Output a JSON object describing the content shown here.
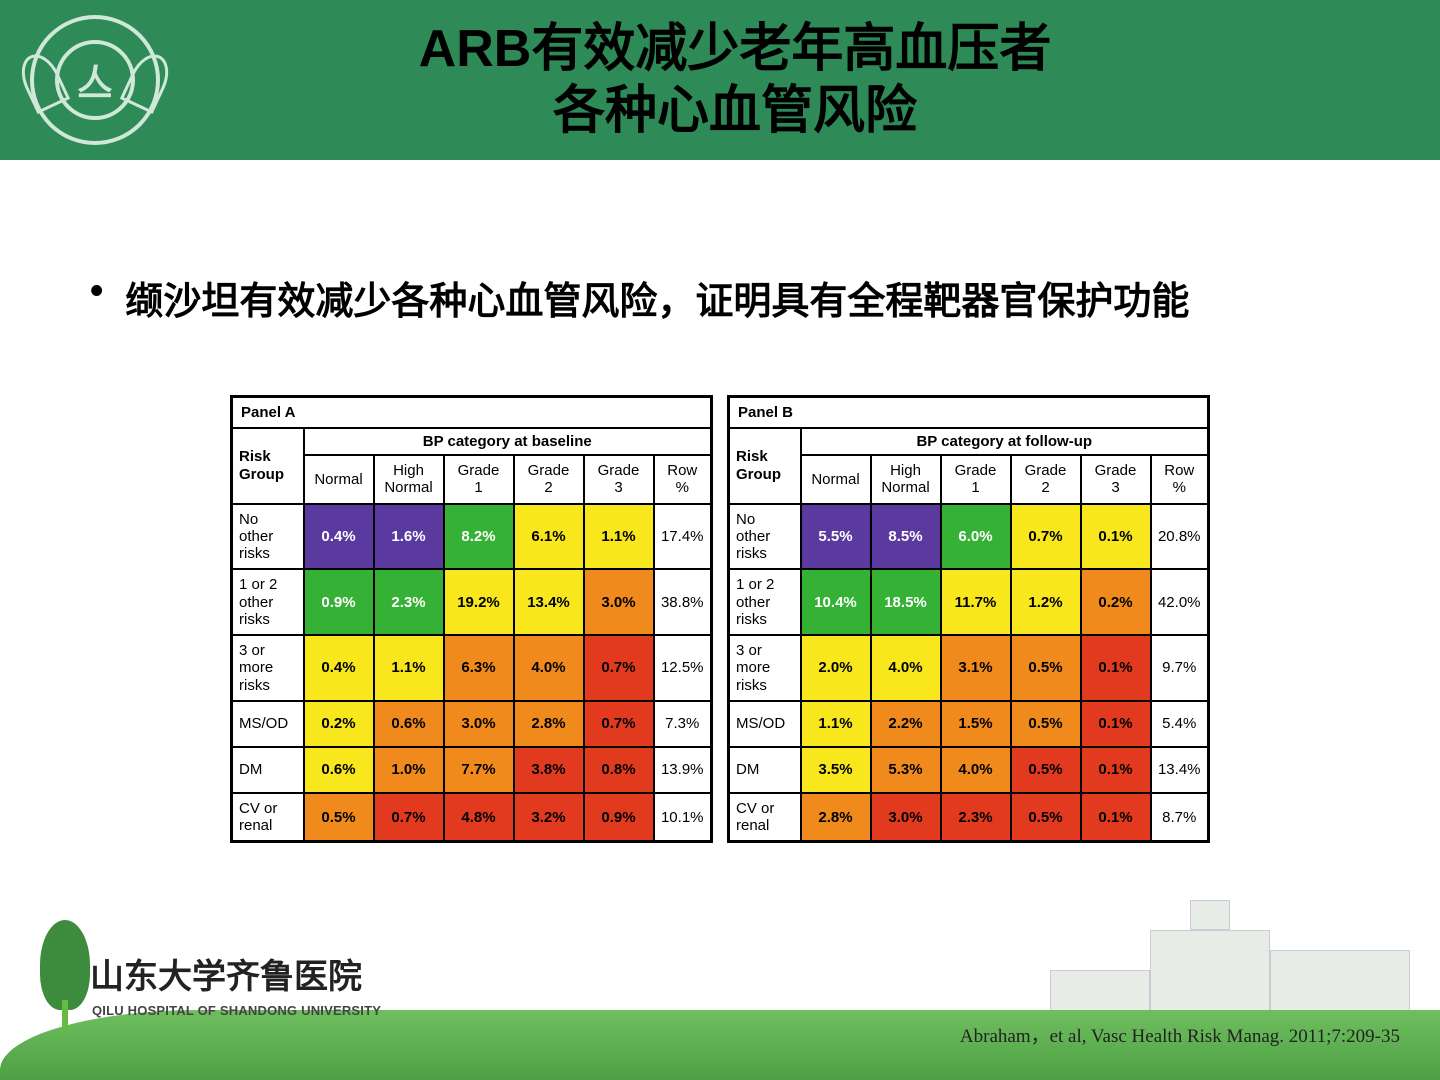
{
  "colors": {
    "header_bg": "#2e8b57",
    "purple": "#5b3aa0",
    "green": "#35b135",
    "yellow": "#f7e71c",
    "orange": "#f08a1d",
    "red": "#e13a1f"
  },
  "title_line1": "ARB有效减少老年高血压者",
  "title_line2": "各种心血管风险",
  "bullet": "缬沙坦有效减少各种心血管风险，证明具有全程靶器官保护功能",
  "panelA": {
    "title": "Panel A",
    "bp_head": "BP category at baseline"
  },
  "panelB": {
    "title": "Panel B",
    "bp_head": "BP category at follow-up"
  },
  "risk_group_label": "Risk Group",
  "cols": [
    "Normal",
    "High Normal",
    "Grade 1",
    "Grade 2",
    "Grade 3",
    "Row %"
  ],
  "rows": [
    {
      "label": "No other risks",
      "A": [
        [
          "0.4%",
          "purple",
          "#fff"
        ],
        [
          "1.6%",
          "purple",
          "#fff"
        ],
        [
          "8.2%",
          "green",
          "#fff"
        ],
        [
          "6.1%",
          "yellow",
          "#000"
        ],
        [
          "1.1%",
          "yellow",
          "#000"
        ]
      ],
      "Arow": "17.4%",
      "B": [
        [
          "5.5%",
          "purple",
          "#fff"
        ],
        [
          "8.5%",
          "purple",
          "#fff"
        ],
        [
          "6.0%",
          "green",
          "#fff"
        ],
        [
          "0.7%",
          "yellow",
          "#000"
        ],
        [
          "0.1%",
          "yellow",
          "#000"
        ]
      ],
      "Brow": "20.8%"
    },
    {
      "label": "1 or 2 other risks",
      "A": [
        [
          "0.9%",
          "green",
          "#fff"
        ],
        [
          "2.3%",
          "green",
          "#fff"
        ],
        [
          "19.2%",
          "yellow",
          "#000"
        ],
        [
          "13.4%",
          "yellow",
          "#000"
        ],
        [
          "3.0%",
          "orange",
          "#000"
        ]
      ],
      "Arow": "38.8%",
      "B": [
        [
          "10.4%",
          "green",
          "#fff"
        ],
        [
          "18.5%",
          "green",
          "#fff"
        ],
        [
          "11.7%",
          "yellow",
          "#000"
        ],
        [
          "1.2%",
          "yellow",
          "#000"
        ],
        [
          "0.2%",
          "orange",
          "#000"
        ]
      ],
      "Brow": "42.0%"
    },
    {
      "label": "3 or more risks",
      "A": [
        [
          "0.4%",
          "yellow",
          "#000"
        ],
        [
          "1.1%",
          "yellow",
          "#000"
        ],
        [
          "6.3%",
          "orange",
          "#000"
        ],
        [
          "4.0%",
          "orange",
          "#000"
        ],
        [
          "0.7%",
          "red",
          "#000"
        ]
      ],
      "Arow": "12.5%",
      "B": [
        [
          "2.0%",
          "yellow",
          "#000"
        ],
        [
          "4.0%",
          "yellow",
          "#000"
        ],
        [
          "3.1%",
          "orange",
          "#000"
        ],
        [
          "0.5%",
          "orange",
          "#000"
        ],
        [
          "0.1%",
          "red",
          "#000"
        ]
      ],
      "Brow": "9.7%"
    },
    {
      "label": "MS/OD",
      "A": [
        [
          "0.2%",
          "yellow",
          "#000"
        ],
        [
          "0.6%",
          "orange",
          "#000"
        ],
        [
          "3.0%",
          "orange",
          "#000"
        ],
        [
          "2.8%",
          "orange",
          "#000"
        ],
        [
          "0.7%",
          "red",
          "#000"
        ]
      ],
      "Arow": "7.3%",
      "B": [
        [
          "1.1%",
          "yellow",
          "#000"
        ],
        [
          "2.2%",
          "orange",
          "#000"
        ],
        [
          "1.5%",
          "orange",
          "#000"
        ],
        [
          "0.5%",
          "orange",
          "#000"
        ],
        [
          "0.1%",
          "red",
          "#000"
        ]
      ],
      "Brow": "5.4%"
    },
    {
      "label": "DM",
      "A": [
        [
          "0.6%",
          "yellow",
          "#000"
        ],
        [
          "1.0%",
          "orange",
          "#000"
        ],
        [
          "7.7%",
          "orange",
          "#000"
        ],
        [
          "3.8%",
          "red",
          "#000"
        ],
        [
          "0.8%",
          "red",
          "#000"
        ]
      ],
      "Arow": "13.9%",
      "B": [
        [
          "3.5%",
          "yellow",
          "#000"
        ],
        [
          "5.3%",
          "orange",
          "#000"
        ],
        [
          "4.0%",
          "orange",
          "#000"
        ],
        [
          "0.5%",
          "red",
          "#000"
        ],
        [
          "0.1%",
          "red",
          "#000"
        ]
      ],
      "Brow": "13.4%"
    },
    {
      "label": "CV or renal",
      "A": [
        [
          "0.5%",
          "orange",
          "#000"
        ],
        [
          "0.7%",
          "red",
          "#000"
        ],
        [
          "4.8%",
          "red",
          "#000"
        ],
        [
          "3.2%",
          "red",
          "#000"
        ],
        [
          "0.9%",
          "red",
          "#000"
        ]
      ],
      "Arow": "10.1%",
      "B": [
        [
          "2.8%",
          "orange",
          "#000"
        ],
        [
          "3.0%",
          "red",
          "#000"
        ],
        [
          "2.3%",
          "red",
          "#000"
        ],
        [
          "0.5%",
          "red",
          "#000"
        ],
        [
          "0.1%",
          "red",
          "#000"
        ]
      ],
      "Brow": "8.7%"
    }
  ],
  "footer_cn": "山东大学齐鲁医院",
  "footer_en": "QILU HOSPITAL OF SHANDONG UNIVERSITY",
  "citation": "Abraham，et al, Vasc Health Risk Manag. 2011;7:209-35"
}
